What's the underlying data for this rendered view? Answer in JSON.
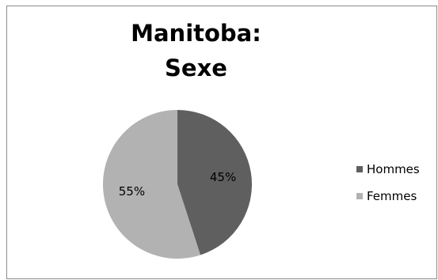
{
  "chart_data": {
    "type": "pie",
    "title_lines": [
      "Manitoba:",
      "Sexe"
    ],
    "slices": [
      {
        "label": "Hommes",
        "value": 45,
        "data_label": "45%",
        "color": "#5f5f5f"
      },
      {
        "label": "Femmes",
        "value": 55,
        "data_label": "55%",
        "color": "#b2b2b2"
      }
    ],
    "legend_position": "right",
    "start_angle": "top",
    "direction": "clockwise"
  }
}
